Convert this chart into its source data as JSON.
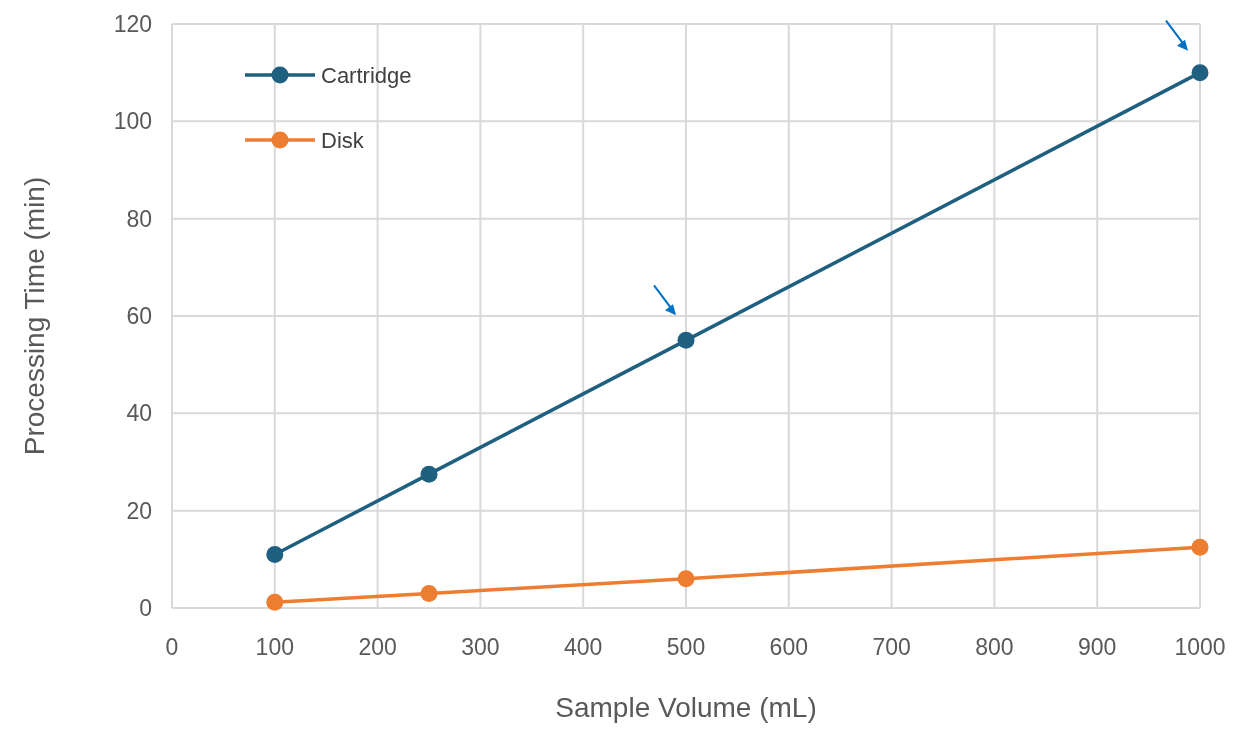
{
  "chart_data": {
    "type": "line",
    "xlabel": "Sample Volume (mL)",
    "ylabel": "Processing Time (min)",
    "x": [
      100,
      250,
      500,
      1000
    ],
    "series": [
      {
        "name": "Cartridge",
        "color": "#1f5f80",
        "values": [
          11,
          27.5,
          55,
          110
        ]
      },
      {
        "name": "Disk",
        "color": "#ed7d31",
        "values": [
          1.2,
          3,
          6,
          12.5
        ]
      }
    ],
    "xlim": [
      0,
      1000
    ],
    "xticks": [
      0,
      100,
      200,
      300,
      400,
      500,
      600,
      700,
      800,
      900,
      1000
    ],
    "ylim": [
      0,
      120
    ],
    "yticks": [
      0,
      20,
      40,
      60,
      80,
      100,
      120
    ],
    "grid": true,
    "legend": "top left",
    "marker": "circle",
    "line_style": "solid"
  }
}
